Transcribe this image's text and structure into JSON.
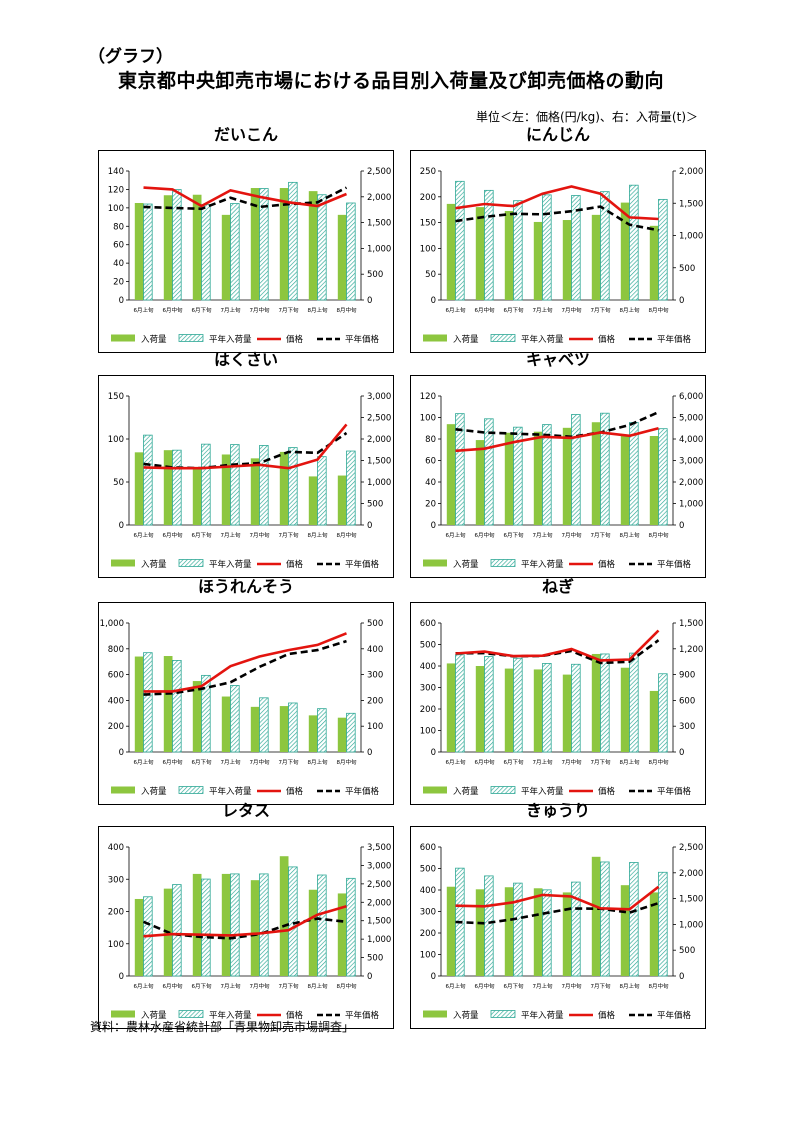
{
  "heading": "（グラフ）",
  "title": "東京都中央卸売市場における品目別入荷量及び卸売価格の動向",
  "unit_note": "単位＜左：価格(円/kg)、右：入荷量(t)＞",
  "source": "資料：農林水産省統計部「青果物卸売市場調査」",
  "colors": {
    "arrival": "#8DC63F",
    "avg_arrival": "#2EA896",
    "price": "#E3140F",
    "avg_price": "#000000"
  },
  "legend": [
    "入荷量",
    "平年入荷量",
    "価格",
    "平年価格"
  ],
  "categories": [
    "6月上旬",
    "6月中旬",
    "6月下旬",
    "7月上旬",
    "7月中旬",
    "7月下旬",
    "8月上旬",
    "8月中旬"
  ],
  "chart_data": [
    {
      "type": "bar",
      "title": "だいこん",
      "y_left": {
        "min": 0,
        "max": 140,
        "step": 20,
        "ticks": [
          "0",
          "20",
          "40",
          "60",
          "80",
          "100",
          "120",
          "140"
        ]
      },
      "y_right": {
        "min": 0,
        "max": 2500,
        "step": 500,
        "ticks": [
          "0",
          "500",
          "1,000",
          "1,500",
          "2,000",
          "2,500"
        ]
      },
      "series": [
        {
          "name": "入荷量",
          "type": "bar",
          "axis": "right",
          "values": [
            1880,
            2030,
            2040,
            1650,
            2170,
            2170,
            2110,
            1650
          ]
        },
        {
          "name": "平年入荷量",
          "type": "bar",
          "axis": "right",
          "values": [
            1860,
            2140,
            1850,
            1870,
            2160,
            2280,
            2040,
            1880
          ]
        },
        {
          "name": "価格",
          "type": "line",
          "axis": "left",
          "values": [
            122,
            120,
            102,
            119,
            112,
            106,
            102,
            115
          ]
        },
        {
          "name": "平年価格",
          "type": "line",
          "axis": "left",
          "values": [
            101,
            100,
            99,
            111,
            101,
            104,
            106,
            122
          ]
        }
      ]
    },
    {
      "type": "bar",
      "title": "にんじん",
      "y_left": {
        "min": 0,
        "max": 250,
        "step": 50,
        "ticks": [
          "0",
          "50",
          "100",
          "150",
          "200",
          "250"
        ]
      },
      "y_right": {
        "min": 0,
        "max": 2000,
        "step": 500,
        "ticks": [
          "0",
          "500",
          "1,000",
          "1,500",
          "2,000"
        ]
      },
      "series": [
        {
          "name": "入荷量",
          "type": "bar",
          "axis": "right",
          "values": [
            1490,
            1440,
            1380,
            1210,
            1240,
            1320,
            1510,
            1150
          ]
        },
        {
          "name": "平年入荷量",
          "type": "bar",
          "axis": "right",
          "values": [
            1840,
            1700,
            1540,
            1630,
            1620,
            1680,
            1780,
            1560
          ]
        },
        {
          "name": "価格",
          "type": "line",
          "axis": "left",
          "values": [
            178,
            186,
            182,
            206,
            220,
            206,
            160,
            157
          ]
        },
        {
          "name": "平年価格",
          "type": "line",
          "axis": "left",
          "values": [
            153,
            161,
            167,
            166,
            172,
            181,
            146,
            135
          ]
        }
      ]
    },
    {
      "type": "bar",
      "title": "はくさい",
      "y_left": {
        "min": 0,
        "max": 150,
        "step": 50,
        "ticks": [
          "0",
          "50",
          "100",
          "150"
        ]
      },
      "y_right": {
        "min": 0,
        "max": 3000,
        "step": 500,
        "ticks": [
          "0",
          "500",
          "1,000",
          "1,500",
          "2,000",
          "2,500",
          "3,000"
        ]
      },
      "series": [
        {
          "name": "入荷量",
          "type": "bar",
          "axis": "right",
          "values": [
            1690,
            1740,
            1300,
            1640,
            1550,
            1700,
            1130,
            1150
          ]
        },
        {
          "name": "平年入荷量",
          "type": "bar",
          "axis": "right",
          "values": [
            2090,
            1740,
            1880,
            1870,
            1850,
            1800,
            1590,
            1720
          ]
        },
        {
          "name": "価格",
          "type": "line",
          "axis": "left",
          "values": [
            67,
            66,
            66,
            68,
            70,
            66,
            76,
            117
          ]
        },
        {
          "name": "平年価格",
          "type": "line",
          "axis": "left",
          "values": [
            71,
            67,
            66,
            70,
            72,
            85,
            84,
            107
          ]
        }
      ]
    },
    {
      "type": "bar",
      "title": "キャベツ",
      "y_left": {
        "min": 0,
        "max": 120,
        "step": 20,
        "ticks": [
          "0",
          "20",
          "40",
          "60",
          "80",
          "100",
          "120"
        ]
      },
      "y_right": {
        "min": 0,
        "max": 6000,
        "step": 1000,
        "ticks": [
          "0",
          "1,000",
          "2,000",
          "3,000",
          "4,000",
          "5,000",
          "6,000"
        ]
      },
      "series": [
        {
          "name": "入荷量",
          "type": "bar",
          "axis": "right",
          "values": [
            4690,
            3950,
            4290,
            4340,
            4520,
            4780,
            4200,
            4140
          ]
        },
        {
          "name": "平年入荷量",
          "type": "bar",
          "axis": "right",
          "values": [
            5180,
            4940,
            4550,
            4670,
            5140,
            5200,
            4770,
            4480
          ]
        },
        {
          "name": "価格",
          "type": "line",
          "axis": "left",
          "values": [
            69,
            71,
            77,
            82,
            81,
            86,
            83,
            90
          ]
        },
        {
          "name": "平年価格",
          "type": "line",
          "axis": "left",
          "values": [
            89,
            86,
            85,
            84,
            82,
            86,
            93,
            105
          ]
        }
      ]
    },
    {
      "type": "bar",
      "title": "ほうれんそう",
      "y_left": {
        "min": 0,
        "max": 1000,
        "step": 200,
        "ticks": [
          "0",
          "200",
          "400",
          "600",
          "800",
          "1,000"
        ]
      },
      "y_right": {
        "min": 0,
        "max": 500,
        "step": 100,
        "ticks": [
          "0",
          "100",
          "200",
          "300",
          "400",
          "500"
        ]
      },
      "series": [
        {
          "name": "入荷量",
          "type": "bar",
          "axis": "right",
          "values": [
            370,
            372,
            275,
            215,
            175,
            178,
            142,
            133
          ]
        },
        {
          "name": "平年入荷量",
          "type": "bar",
          "axis": "right",
          "values": [
            385,
            355,
            297,
            258,
            210,
            190,
            168,
            150
          ]
        },
        {
          "name": "価格",
          "type": "line",
          "axis": "left",
          "values": [
            470,
            470,
            510,
            665,
            740,
            790,
            830,
            920
          ]
        },
        {
          "name": "平年価格",
          "type": "line",
          "axis": "left",
          "values": [
            445,
            455,
            490,
            540,
            660,
            760,
            790,
            860
          ]
        }
      ]
    },
    {
      "type": "bar",
      "title": "ねぎ",
      "y_left": {
        "min": 0,
        "max": 600,
        "step": 100,
        "ticks": [
          "0",
          "100",
          "200",
          "300",
          "400",
          "500",
          "600"
        ]
      },
      "y_right": {
        "min": 0,
        "max": 1500,
        "step": 300,
        "ticks": [
          "0",
          "300",
          "600",
          "900",
          "1,200",
          "1,500"
        ]
      },
      "series": [
        {
          "name": "入荷量",
          "type": "bar",
          "axis": "right",
          "values": [
            1030,
            1000,
            970,
            960,
            900,
            1140,
            980,
            710
          ]
        },
        {
          "name": "平年入荷量",
          "type": "bar",
          "axis": "right",
          "values": [
            1130,
            1110,
            1090,
            1030,
            1020,
            1140,
            1150,
            910
          ]
        },
        {
          "name": "価格",
          "type": "line",
          "axis": "left",
          "values": [
            458,
            467,
            446,
            448,
            479,
            426,
            430,
            565
          ]
        },
        {
          "name": "平年価格",
          "type": "line",
          "axis": "left",
          "values": [
            459,
            460,
            445,
            447,
            470,
            414,
            420,
            520
          ]
        }
      ]
    },
    {
      "type": "bar",
      "title": "レタス",
      "y_left": {
        "min": 0,
        "max": 400,
        "step": 100,
        "ticks": [
          "0",
          "100",
          "200",
          "300",
          "400"
        ]
      },
      "y_right": {
        "min": 0,
        "max": 3500,
        "step": 500,
        "ticks": [
          "0",
          "500",
          "1,000",
          "1,500",
          "2,000",
          "2,500",
          "3,000",
          "3,500"
        ]
      },
      "series": [
        {
          "name": "入荷量",
          "type": "bar",
          "axis": "right",
          "values": [
            2090,
            2370,
            2770,
            2770,
            2600,
            3250,
            2340,
            2240
          ]
        },
        {
          "name": "平年入荷量",
          "type": "bar",
          "axis": "right",
          "values": [
            2150,
            2480,
            2630,
            2770,
            2770,
            2960,
            2740,
            2650
          ]
        },
        {
          "name": "価格",
          "type": "line",
          "axis": "left",
          "values": [
            123,
            130,
            128,
            126,
            132,
            142,
            190,
            216
          ]
        },
        {
          "name": "平年価格",
          "type": "line",
          "axis": "left",
          "values": [
            168,
            130,
            121,
            117,
            130,
            160,
            178,
            168
          ]
        }
      ]
    },
    {
      "type": "bar",
      "title": "きゅうり",
      "y_left": {
        "min": 0,
        "max": 600,
        "step": 100,
        "ticks": [
          "0",
          "100",
          "200",
          "300",
          "400",
          "500",
          "600"
        ]
      },
      "y_right": {
        "min": 0,
        "max": 2500,
        "step": 500,
        "ticks": [
          "0",
          "500",
          "1,000",
          "1,500",
          "2,000",
          "2,500"
        ]
      },
      "series": [
        {
          "name": "入荷量",
          "type": "bar",
          "axis": "right",
          "values": [
            1730,
            1680,
            1720,
            1700,
            1620,
            2310,
            1760,
            1620
          ]
        },
        {
          "name": "平年入荷量",
          "type": "bar",
          "axis": "right",
          "values": [
            2090,
            1940,
            1800,
            1670,
            1820,
            2210,
            2200,
            2010
          ]
        },
        {
          "name": "価格",
          "type": "line",
          "axis": "left",
          "values": [
            327,
            324,
            343,
            377,
            370,
            315,
            310,
            415
          ]
        },
        {
          "name": "平年価格",
          "type": "line",
          "axis": "left",
          "values": [
            251,
            245,
            264,
            290,
            314,
            313,
            295,
            339
          ]
        }
      ]
    }
  ]
}
